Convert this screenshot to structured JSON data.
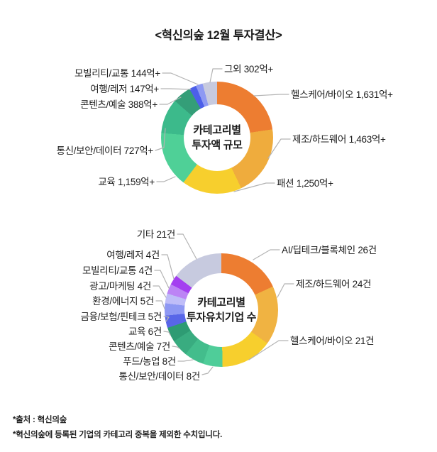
{
  "title": "<혁신의숲 12월 투자결산>",
  "footnotes": [
    "*출처 : 혁신의숲",
    "*혁신의숲에 등록된 기업의 카테고리 중복을 제외한 수치입니다."
  ],
  "callout_line_color": "#b3b3b3",
  "chart_data": [
    {
      "type": "pie",
      "subtype": "donut",
      "title": "카테고리별 투자액 규모",
      "center_lines": [
        "카테고리별",
        "투자액 규모"
      ],
      "unit": "억+",
      "direction": "clockwise",
      "start_angle_deg": 0,
      "legend_position": "callout-labels",
      "categories": [
        "헬스케어/바이오",
        "제조/하드웨어",
        "패션",
        "교육",
        "통신/보안/데이터",
        "콘텐츠/예술",
        "여행/레저",
        "모빌리티/교통",
        "그외"
      ],
      "values": [
        1631,
        1463,
        1250,
        1159,
        727,
        388,
        147,
        144,
        302
      ],
      "labels": [
        "헬스케어/바이오 1,631억+",
        "제조/하드웨어 1,463억+",
        "패션 1,250억+",
        "교육 1,159억+",
        "통신/보안/데이터 727억+",
        "콘텐츠/예술 388억+",
        "여행/레저 147억+",
        "모빌리티/교통 144억+",
        "그외 302억+"
      ],
      "colors": [
        "#ED7D31",
        "#EFAC3D",
        "#F7CF2D",
        "#4FD097",
        "#3CBA8B",
        "#349E78",
        "#4C5FE9",
        "#8D99F3",
        "#C7CADF"
      ]
    },
    {
      "type": "pie",
      "subtype": "donut",
      "title": "카테고리별 투자유치기업 수",
      "center_lines": [
        "카테고리별",
        "투자유치기업 수"
      ],
      "unit": "건",
      "direction": "clockwise",
      "start_angle_deg": 0,
      "legend_position": "callout-labels",
      "categories": [
        "AI/딥테크/블록체인",
        "제조/하드웨어",
        "헬스케어/바이오",
        "통신/보안/데이터",
        "푸드/농업",
        "콘텐츠/예술",
        "교육",
        "금융/보험/핀테크",
        "환경/에너지",
        "광고/마케팅",
        "모빌리티/교통",
        "여행/레저",
        "기타"
      ],
      "values": [
        26,
        24,
        21,
        8,
        8,
        7,
        6,
        5,
        5,
        4,
        4,
        4,
        21
      ],
      "labels": [
        "AI/딥테크/블록체인 26건",
        "제조/하드웨어 24건",
        "헬스케어/바이오 21건",
        "통신/보안/데이터 8건",
        "푸드/농업 8건",
        "콘텐츠/예술 7건",
        "교육 6건",
        "금융/보험/핀테크 5건",
        "환경/에너지 5건",
        "광고/마케팅 4건",
        "모빌리티/교통 4건",
        "여행/레저 4건",
        "기타 21건"
      ],
      "colors": [
        "#ED7D31",
        "#F0B342",
        "#F7CF2D",
        "#4FCD99",
        "#43BD8C",
        "#39AC80",
        "#2E9B73",
        "#5866E8",
        "#8E98F3",
        "#BFBDF8",
        "#BC84F5",
        "#A43FF0",
        "#C7CADF"
      ]
    }
  ]
}
